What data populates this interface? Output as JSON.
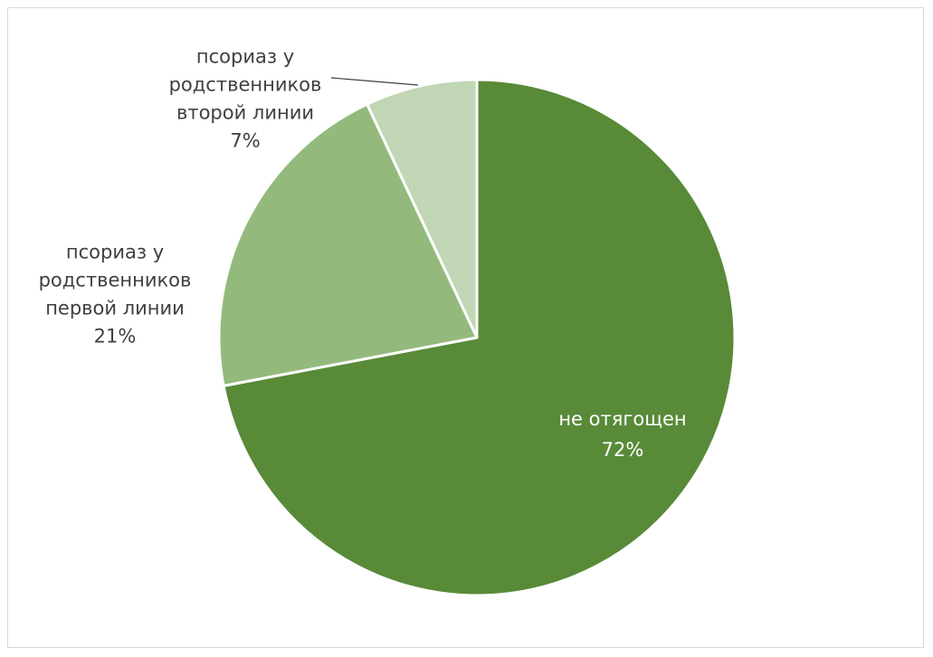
{
  "chart_data": {
    "type": "pie",
    "title": "",
    "slices": [
      {
        "label": "не отягощен",
        "percent_label": "72%",
        "value": 72,
        "color": "#588a38",
        "label_color": "#ffffff"
      },
      {
        "label": "псориаз у родственников первой линии",
        "percent_label": "21%",
        "value": 21,
        "color": "#93ba7c",
        "label_color": "#404040"
      },
      {
        "label": "псориаз у родственников второй линии",
        "percent_label": "7%",
        "value": 7,
        "color": "#c0d6b4",
        "label_color": "#404040"
      }
    ],
    "label_lines": [
      [
        "не отягощен",
        "72%"
      ],
      [
        "псориаз у",
        "родственников",
        "первой линии",
        "21%"
      ],
      [
        "псориаз у",
        "родственников",
        "второй линии",
        "7%"
      ]
    ],
    "start_angle_deg": 0,
    "direction": "clockwise"
  }
}
